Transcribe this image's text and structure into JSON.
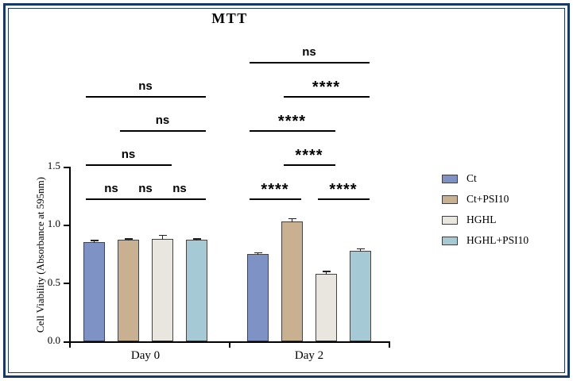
{
  "figure": {
    "frame_color": "#17386b",
    "background_color": "#ffffff"
  },
  "chart_data": {
    "type": "bar",
    "title": "MTT",
    "ylabel": "Cell Viability (Absorbance at 595nm)",
    "ylim": [
      0,
      1.5
    ],
    "yticks": [
      "0.0",
      "0.5",
      "1.0",
      "1.5"
    ],
    "groups": [
      "Day 0",
      "Day 2"
    ],
    "series": [
      {
        "name": "Ct",
        "color": "#7f92c6",
        "values": [
          0.85,
          0.75
        ],
        "errors": [
          0.02,
          0.015
        ]
      },
      {
        "name": "Ct+PSI10",
        "color": "#c8b091",
        "values": [
          0.87,
          1.03
        ],
        "errors": [
          0.015,
          0.03
        ]
      },
      {
        "name": "HGHL",
        "color": "#e8e6df",
        "values": [
          0.88,
          0.58
        ],
        "errors": [
          0.035,
          0.025
        ]
      },
      {
        "name": "HGHL+PSI10",
        "color": "#a6c9d6",
        "values": [
          0.87,
          0.78
        ],
        "errors": [
          0.015,
          0.02
        ]
      }
    ],
    "legend": [
      "Ct",
      "Ct+PSI10",
      "HGHL",
      "HGHL+PSI10"
    ],
    "legend_position": "right",
    "grid": false,
    "significance": [
      {
        "group": 0,
        "from": 0,
        "to": 1,
        "label": "ns",
        "tier": 0
      },
      {
        "group": 0,
        "from": 1,
        "to": 2,
        "label": "ns",
        "tier": 0
      },
      {
        "group": 0,
        "from": 2,
        "to": 3,
        "label": "ns",
        "tier": 0
      },
      {
        "group": 0,
        "from": 0,
        "to": 2,
        "label": "ns",
        "tier": 1
      },
      {
        "group": 0,
        "from": 1,
        "to": 3,
        "label": "ns",
        "tier": 2
      },
      {
        "group": 0,
        "from": 0,
        "to": 3,
        "label": "ns",
        "tier": 3
      },
      {
        "group": 1,
        "from": 0,
        "to": 1,
        "label": "****",
        "tier": 0
      },
      {
        "group": 1,
        "from": 2,
        "to": 3,
        "label": "****",
        "tier": 0
      },
      {
        "group": 1,
        "from": 1,
        "to": 2,
        "label": "****",
        "tier": 1
      },
      {
        "group": 1,
        "from": 0,
        "to": 2,
        "label": "****",
        "tier": 2
      },
      {
        "group": 1,
        "from": 1,
        "to": 3,
        "label": "****",
        "tier": 3
      },
      {
        "group": 1,
        "from": 0,
        "to": 3,
        "label": "ns",
        "tier": 4
      }
    ]
  }
}
